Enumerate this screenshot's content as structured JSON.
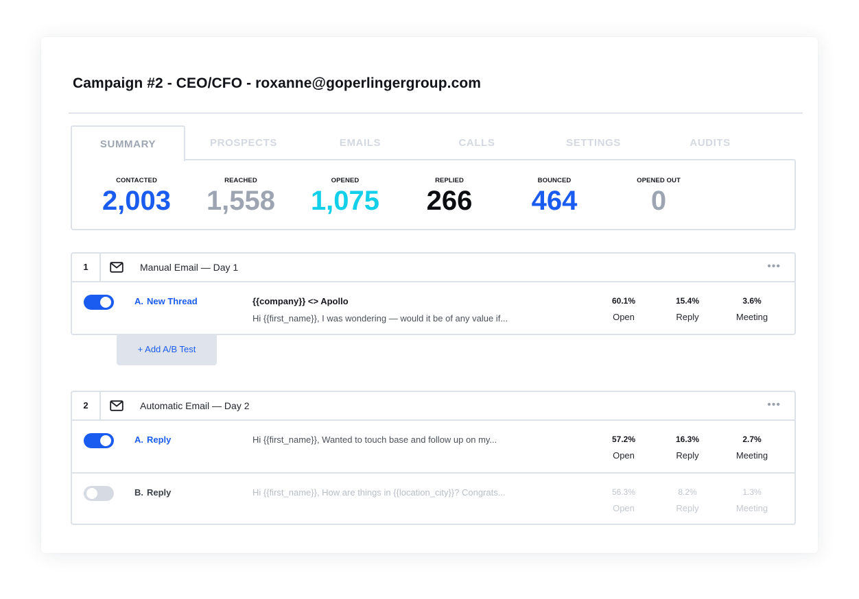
{
  "campaign": {
    "title": "Campaign #2 - CEO/CFO - roxanne@goperlingergroup.com"
  },
  "tabs": [
    {
      "label": "SUMMARY",
      "active": true
    },
    {
      "label": "PROSPECTS"
    },
    {
      "label": "EMAILS"
    },
    {
      "label": "CALLS"
    },
    {
      "label": "SETTINGS"
    },
    {
      "label": "AUDITS"
    }
  ],
  "stats": [
    {
      "label": "CONTACTED",
      "value": "2,003",
      "color": "#1a5cf0"
    },
    {
      "label": "REACHED",
      "value": "1,558",
      "color": "#9ea5b2"
    },
    {
      "label": "OPENED",
      "value": "1,075",
      "color": "#12d0ea"
    },
    {
      "label": "REPLIED",
      "value": "266",
      "color": "#0c0d10"
    },
    {
      "label": "BOUNCED",
      "value": "464",
      "color": "#1a5cf0"
    },
    {
      "label": "OPENED OUT",
      "value": "0",
      "color": "#9ea5b2"
    }
  ],
  "steps": [
    {
      "number": "1",
      "title": "Manual Email — Day 1",
      "more": "•••",
      "variants": [
        {
          "letter": "A.",
          "name": "New Thread",
          "enabled": true,
          "subject": "{{company}} <> Apollo",
          "preview": "Hi {{first_name}}, I was wondering — would it be of any value if...",
          "open": "60.1%",
          "reply": "15.4%",
          "meeting": "3.6%",
          "open_label": "Open",
          "reply_label": "Reply",
          "meeting_label": "Meeting"
        }
      ]
    },
    {
      "number": "2",
      "title": "Automatic Email — Day 2",
      "more": "•••",
      "variants": [
        {
          "letter": "A.",
          "name": "Reply",
          "enabled": true,
          "preview": "Hi {{first_name}}, Wanted to touch base and follow up on my...",
          "open": "57.2%",
          "reply": "16.3%",
          "meeting": "2.7%",
          "open_label": "Open",
          "reply_label": "Reply",
          "meeting_label": "Meeting"
        },
        {
          "letter": "B.",
          "name": "Reply",
          "enabled": false,
          "preview": "Hi {{first_name}}, How are things in {{location_city}}? Congrats...",
          "open": "56.3%",
          "reply": "8.2%",
          "meeting": "1.3%",
          "open_label": "Open",
          "reply_label": "Reply",
          "meeting_label": "Meeting"
        }
      ]
    }
  ],
  "ab_test": {
    "label": "+ Add A/B Test"
  },
  "icons": {
    "step_icon": "envelope-icon",
    "more_icon": "more-options-icon"
  }
}
